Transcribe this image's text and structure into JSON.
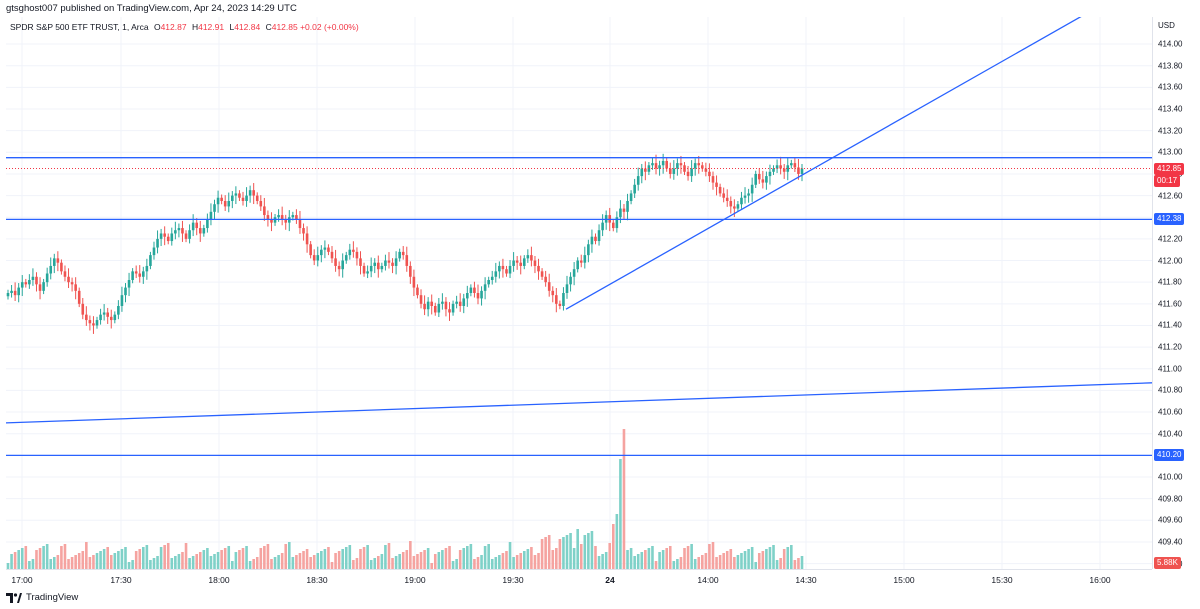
{
  "header": {
    "publisher_line": "gtsghost007 published on TradingView.com, Apr 24, 2023 14:29 UTC"
  },
  "legend": {
    "symbol": "SPDR S&P 500 ETF TRUST, 1, Arca",
    "open_label": "O",
    "open": "412.87",
    "high_label": "H",
    "high": "412.91",
    "low_label": "L",
    "low": "412.84",
    "close_label": "C",
    "close": "412.85",
    "change": "+0.02 (+0.00%)"
  },
  "price_axis": {
    "currency": "USD",
    "ticks": [
      "414.00",
      "413.80",
      "413.60",
      "413.40",
      "413.20",
      "413.00",
      "412.80",
      "412.60",
      "412.40",
      "412.20",
      "412.00",
      "411.80",
      "411.60",
      "411.40",
      "411.20",
      "411.00",
      "410.80",
      "410.60",
      "410.40",
      "410.20",
      "410.00",
      "409.80",
      "409.60",
      "409.40",
      "409.20"
    ],
    "last_price_tag": "412.85",
    "countdown_tag": "00:17",
    "level_tag_upper": "412.38",
    "level_tag_lower": "410.20",
    "volume_tag": "5.88K"
  },
  "time_axis": {
    "labels": [
      {
        "text": "17:00",
        "bold": false
      },
      {
        "text": "17:30",
        "bold": false
      },
      {
        "text": "18:00",
        "bold": false
      },
      {
        "text": "18:30",
        "bold": false
      },
      {
        "text": "19:00",
        "bold": false
      },
      {
        "text": "19:30",
        "bold": false
      },
      {
        "text": "24",
        "bold": true
      },
      {
        "text": "14:00",
        "bold": false
      },
      {
        "text": "14:30",
        "bold": false
      },
      {
        "text": "15:00",
        "bold": false
      },
      {
        "text": "15:30",
        "bold": false
      },
      {
        "text": "16:00",
        "bold": false
      }
    ]
  },
  "footer": {
    "brand": "TradingView"
  },
  "colors": {
    "up": "#26a69a",
    "down": "#ef5350",
    "up_volume": "#7fd1c8",
    "down_volume": "#f5a3a0",
    "drawing_line": "#2962ff",
    "last_price": "#f23645",
    "grid": "#f0f3fa"
  },
  "chart_data": {
    "type": "candlestick",
    "price_range": [
      409.15,
      414.25
    ],
    "horizontal_levels": [
      412.95,
      412.38,
      410.2
    ],
    "last_price": 412.85,
    "closes": [
      411.7,
      411.72,
      411.68,
      411.75,
      411.8,
      411.78,
      411.82,
      411.85,
      411.78,
      411.72,
      411.8,
      411.88,
      411.95,
      412.02,
      411.98,
      411.9,
      411.85,
      411.8,
      411.78,
      411.72,
      411.6,
      411.5,
      411.45,
      411.42,
      411.4,
      411.45,
      411.5,
      411.52,
      411.48,
      411.45,
      411.5,
      411.58,
      411.68,
      411.75,
      411.82,
      411.9,
      411.88,
      411.85,
      411.9,
      411.95,
      412.05,
      412.12,
      412.2,
      412.25,
      412.22,
      412.18,
      412.25,
      412.28,
      412.3,
      412.25,
      412.2,
      412.28,
      412.35,
      412.3,
      412.25,
      412.3,
      412.38,
      412.45,
      412.52,
      412.58,
      412.55,
      412.5,
      412.55,
      412.6,
      412.62,
      412.58,
      412.55,
      412.6,
      412.65,
      412.6,
      412.55,
      412.5,
      412.42,
      412.38,
      412.35,
      412.4,
      412.42,
      412.38,
      412.35,
      412.4,
      412.42,
      412.38,
      412.3,
      412.25,
      412.15,
      412.05,
      412.0,
      412.05,
      412.1,
      412.12,
      412.08,
      412.02,
      411.95,
      411.92,
      412.0,
      412.05,
      412.1,
      412.08,
      412.02,
      411.95,
      411.88,
      411.9,
      411.95,
      411.98,
      411.92,
      411.95,
      412.0,
      411.98,
      411.95,
      412.02,
      412.08,
      412.05,
      411.95,
      411.85,
      411.75,
      411.68,
      411.6,
      411.55,
      411.62,
      411.58,
      411.52,
      411.6,
      411.62,
      411.55,
      411.52,
      411.6,
      411.62,
      411.58,
      411.65,
      411.7,
      411.75,
      411.7,
      411.65,
      411.72,
      411.78,
      411.82,
      411.85,
      411.9,
      411.95,
      411.92,
      411.88,
      411.95,
      412.0,
      411.98,
      411.95,
      412.02,
      412.05,
      412.0,
      411.95,
      411.9,
      411.85,
      411.8,
      411.72,
      411.68,
      411.6,
      411.58,
      411.7,
      411.78,
      411.85,
      411.92,
      412.0,
      411.98,
      412.05,
      412.15,
      412.22,
      412.18,
      412.28,
      412.35,
      412.42,
      412.35,
      412.3,
      412.4,
      412.48,
      412.45,
      412.55,
      412.62,
      412.7,
      412.78,
      412.85,
      412.82,
      412.88,
      412.9,
      412.85,
      412.88,
      412.92,
      412.85,
      412.8,
      412.85,
      412.9,
      412.88,
      412.82,
      412.78,
      412.85,
      412.9,
      412.88,
      412.85,
      412.82,
      412.78,
      412.72,
      412.68,
      412.62,
      412.58,
      412.55,
      412.5,
      412.48,
      412.52,
      412.58,
      412.6,
      412.62,
      412.7,
      412.8,
      412.75,
      412.72,
      412.78,
      412.82,
      412.85,
      412.88,
      412.85,
      412.82,
      412.88,
      412.9,
      412.86,
      412.8,
      412.85
    ]
  }
}
